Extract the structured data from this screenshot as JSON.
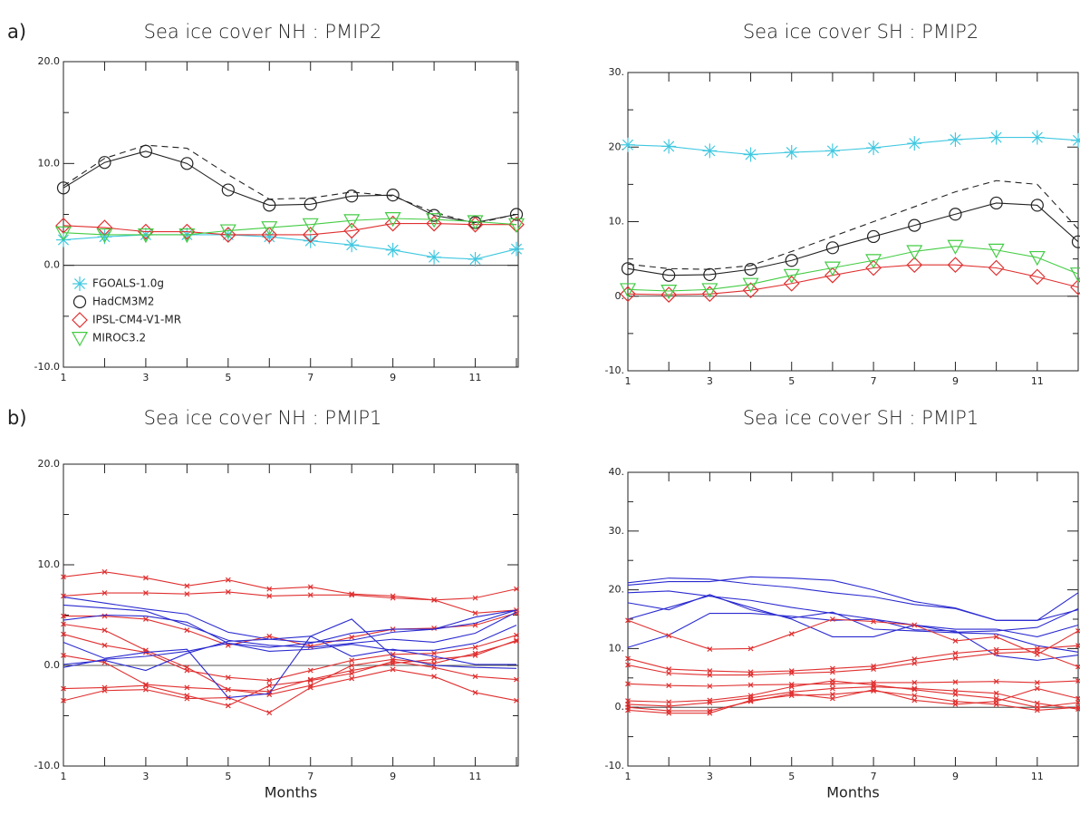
{
  "chart_data": [
    {
      "type": "line",
      "panel_label": "a)",
      "title": "Sea ice cover NH : PMIP2",
      "x": [
        1,
        2,
        3,
        4,
        5,
        6,
        7,
        8,
        9,
        10,
        11,
        12
      ],
      "xlim": [
        1,
        12
      ],
      "xticks": [
        1,
        3,
        5,
        7,
        9,
        11
      ],
      "xminorticks": [
        2,
        4,
        6,
        8,
        10,
        12
      ],
      "ylim": [
        -10,
        20
      ],
      "yticks": [
        {
          "value": -10,
          "label": "-10.0"
        },
        {
          "value": 0,
          "label": "0.0"
        },
        {
          "value": 10,
          "label": "10.0"
        },
        {
          "value": 20,
          "label": "20.0"
        }
      ],
      "yminorticks": [
        -5,
        5,
        15
      ],
      "legend": "lower left",
      "series": [
        {
          "style": "dashed",
          "color": "#222222",
          "values": [
            7.8,
            10.5,
            11.8,
            11.5,
            8.9,
            6.5,
            6.6,
            7.2,
            6.8,
            5.2,
            4.1,
            5.0
          ]
        },
        {
          "name": "FGOALS-1.0g",
          "marker": "asterisk",
          "color": "#40c8e0",
          "values": [
            2.5,
            2.8,
            3.0,
            3.0,
            3.0,
            2.8,
            2.4,
            2.0,
            1.5,
            0.8,
            0.6,
            1.6
          ]
        },
        {
          "name": "HadCM3M2",
          "marker": "circle",
          "color": "#222222",
          "values": [
            7.6,
            10.1,
            11.2,
            10.0,
            7.4,
            5.9,
            6.0,
            6.8,
            6.9,
            4.9,
            4.2,
            5.0
          ]
        },
        {
          "name": "IPSL-CM4-V1-MR",
          "marker": "diamond",
          "color": "#e03030",
          "values": [
            3.9,
            3.7,
            3.3,
            3.3,
            3.0,
            3.0,
            3.0,
            3.4,
            4.1,
            4.1,
            4.0,
            4.0
          ]
        },
        {
          "name": "MIROC3.2",
          "marker": "triangle",
          "color": "#44cc44",
          "values": [
            3.2,
            3.0,
            3.0,
            3.0,
            3.4,
            3.7,
            4.0,
            4.4,
            4.6,
            4.5,
            4.3,
            4.0
          ]
        }
      ]
    },
    {
      "type": "line",
      "title": "Sea ice cover SH : PMIP2",
      "x": [
        1,
        2,
        3,
        4,
        5,
        6,
        7,
        8,
        9,
        10,
        11,
        12
      ],
      "xlim": [
        1,
        12
      ],
      "xticks": [
        1,
        3,
        5,
        7,
        9,
        11
      ],
      "xminorticks": [
        2,
        4,
        6,
        8,
        10,
        12
      ],
      "ylim": [
        -10,
        30
      ],
      "yticks": [
        {
          "value": -10,
          "label": "-10."
        },
        {
          "value": 0,
          "label": "0."
        },
        {
          "value": 10,
          "label": "10."
        },
        {
          "value": 20,
          "label": "20."
        },
        {
          "value": 30,
          "label": "30."
        }
      ],
      "yminorticks": [
        -5,
        5,
        15,
        25
      ],
      "series": [
        {
          "style": "dashed",
          "color": "#222222",
          "values": [
            4.3,
            3.7,
            3.6,
            4.1,
            6.0,
            8.0,
            10.0,
            12.0,
            14.0,
            15.5,
            15.0,
            9.0
          ]
        },
        {
          "marker": "asterisk",
          "color": "#40c8e0",
          "values": [
            20.3,
            20.1,
            19.5,
            19.0,
            19.3,
            19.5,
            19.9,
            20.5,
            21.0,
            21.3,
            21.3,
            20.9
          ]
        },
        {
          "marker": "circle",
          "color": "#222222",
          "values": [
            3.7,
            2.8,
            2.9,
            3.6,
            4.8,
            6.5,
            8.0,
            9.5,
            11.0,
            12.5,
            12.2,
            7.3
          ]
        },
        {
          "marker": "diamond",
          "color": "#e03030",
          "values": [
            0.3,
            0.2,
            0.3,
            0.8,
            1.7,
            2.8,
            3.8,
            4.2,
            4.2,
            3.8,
            2.6,
            1.2
          ]
        },
        {
          "marker": "triangle",
          "color": "#44cc44",
          "values": [
            0.9,
            0.7,
            0.9,
            1.6,
            2.8,
            3.8,
            4.8,
            6.0,
            6.7,
            6.2,
            5.2,
            3.0
          ]
        }
      ]
    },
    {
      "type": "line",
      "panel_label": "b)",
      "title": "Sea ice cover NH : PMIP1",
      "xlabel": "Months",
      "x": [
        1,
        2,
        3,
        4,
        5,
        6,
        7,
        8,
        9,
        10,
        11,
        12
      ],
      "xlim": [
        1,
        12
      ],
      "xticks": [
        1,
        3,
        5,
        7,
        9,
        11
      ],
      "xminorticks": [
        2,
        4,
        6,
        8,
        10,
        12
      ],
      "ylim": [
        -10,
        20
      ],
      "yticks": [
        {
          "value": -10,
          "label": "-10.0"
        },
        {
          "value": 0,
          "label": "0.0"
        },
        {
          "value": 10,
          "label": "10.0"
        },
        {
          "value": 20,
          "label": "20.0"
        }
      ],
      "yminorticks": [
        -5,
        5,
        15
      ],
      "series": [
        {
          "marker": "x",
          "color": "#e03030",
          "values": [
            8.8,
            9.3,
            8.7,
            7.9,
            8.5,
            7.6,
            7.8,
            7.1,
            6.9,
            6.5,
            6.7,
            7.6
          ]
        },
        {
          "marker": "x",
          "color": "#e03030",
          "values": [
            6.9,
            7.2,
            7.2,
            7.1,
            7.3,
            6.9,
            7.0,
            7.0,
            6.7,
            6.5,
            5.2,
            5.5
          ]
        },
        {
          "marker": "x",
          "color": "#e03030",
          "values": [
            4.9,
            4.9,
            4.6,
            3.5,
            2.0,
            2.9,
            1.9,
            2.8,
            3.6,
            3.7,
            4.0,
            5.2
          ]
        },
        {
          "marker": "x",
          "color": "#e03030",
          "values": [
            3.1,
            2.0,
            1.3,
            -0.5,
            -1.2,
            -1.5,
            -0.5,
            0.5,
            1.1,
            1.2,
            1.8,
            3.0
          ]
        },
        {
          "marker": "x",
          "color": "#e03030",
          "values": [
            1.0,
            0.3,
            -1.9,
            -2.2,
            -2.4,
            -2.6,
            -1.4,
            -0.5,
            0.2,
            0.6,
            1.0,
            2.5
          ]
        },
        {
          "marker": "x",
          "color": "#e03030",
          "values": [
            -2.3,
            -2.2,
            -2.0,
            -3.0,
            -4.0,
            -2.0,
            -1.5,
            -0.8,
            0.4,
            -0.2,
            -1.1,
            -1.4
          ]
        },
        {
          "marker": "x",
          "color": "#e03030",
          "values": [
            -3.5,
            -2.5,
            -2.4,
            -3.3,
            -3.2,
            -4.7,
            -2.2,
            -1.3,
            -0.4,
            -1.1,
            -2.7,
            -3.5
          ]
        },
        {
          "marker": "x",
          "color": "#e03030",
          "values": [
            4.1,
            3.5,
            1.5,
            -0.2,
            -2.4,
            -2.9,
            -2.0,
            0.0,
            0.6,
            0.2,
            1.2,
            2.4
          ]
        },
        {
          "color": "#2a2ad0",
          "values": [
            6.8,
            6.2,
            5.6,
            5.1,
            3.3,
            2.6,
            2.3,
            2.5,
            3.3,
            3.6,
            4.8,
            5.5
          ]
        },
        {
          "color": "#2a2ad0",
          "values": [
            6.0,
            5.7,
            5.4,
            4.0,
            2.5,
            2.0,
            1.8,
            2.2,
            2.6,
            2.3,
            3.2,
            5.3
          ]
        },
        {
          "color": "#2a2ad0",
          "values": [
            4.5,
            5.0,
            4.9,
            4.3,
            2.2,
            1.4,
            1.6,
            2.1,
            1.5,
            1.5,
            2.2,
            4.0
          ]
        },
        {
          "color": "#2a2ad0",
          "values": [
            2.3,
            0.7,
            1.3,
            1.6,
            -3.2,
            -2.8,
            2.9,
            4.6,
            0.9,
            0.0,
            -0.2,
            -0.3
          ]
        },
        {
          "color": "#2a2ad0",
          "values": [
            0.1,
            0.5,
            -0.5,
            1.2,
            2.4,
            2.6,
            2.9,
            0.9,
            1.6,
            0.9,
            0.1,
            0.1
          ]
        },
        {
          "color": "#2a2ad0",
          "values": [
            -0.2,
            0.6,
            0.9,
            1.4,
            2.2,
            1.8,
            2.2,
            3.2,
            3.6,
            3.6,
            4.2,
            5.5
          ]
        }
      ]
    },
    {
      "type": "line",
      "title": "Sea ice cover SH : PMIP1",
      "xlabel": "Months",
      "x": [
        1,
        2,
        3,
        4,
        5,
        6,
        7,
        8,
        9,
        10,
        11,
        12
      ],
      "xlim": [
        1,
        12
      ],
      "xticks": [
        1,
        3,
        5,
        7,
        9,
        11
      ],
      "xminorticks": [
        2,
        4,
        6,
        8,
        10,
        12
      ],
      "ylim": [
        -10,
        40
      ],
      "yticks": [
        {
          "value": -10,
          "label": "-10."
        },
        {
          "value": 0,
          "label": "0."
        },
        {
          "value": 10,
          "label": "10."
        },
        {
          "value": 20,
          "label": "20."
        },
        {
          "value": 30,
          "label": "30."
        },
        {
          "value": 40,
          "label": "40."
        }
      ],
      "yminorticks": [
        -5,
        5,
        15,
        25,
        35
      ],
      "series": [
        {
          "color": "#2a2ad0",
          "values": [
            21.2,
            22.0,
            21.8,
            21.0,
            20.4,
            19.5,
            18.8,
            17.5,
            16.8,
            14.8,
            14.8,
            19.5
          ]
        },
        {
          "color": "#2a2ad0",
          "values": [
            20.8,
            21.4,
            21.4,
            22.2,
            22.0,
            21.6,
            20.0,
            18.0,
            16.9,
            14.8,
            14.8,
            16.6
          ]
        },
        {
          "color": "#2a2ad0",
          "values": [
            19.5,
            19.8,
            18.9,
            18.2,
            17.0,
            16.0,
            15.0,
            14.0,
            13.3,
            13.3,
            12.0,
            14.0
          ]
        },
        {
          "color": "#2a2ad0",
          "values": [
            17.8,
            16.6,
            19.2,
            16.6,
            15.2,
            16.2,
            13.3,
            13.0,
            12.7,
            12.5,
            10.5,
            9.4
          ]
        },
        {
          "color": "#2a2ad0",
          "values": [
            15.0,
            17.0,
            19.0,
            17.0,
            15.0,
            12.0,
            12.0,
            14.0,
            12.8,
            13.0,
            13.6,
            16.8
          ]
        },
        {
          "color": "#2a2ad0",
          "values": [
            10.2,
            12.3,
            16.0,
            16.0,
            15.5,
            14.8,
            15.0,
            13.2,
            13.0,
            8.8,
            8.0,
            8.9
          ]
        },
        {
          "marker": "x",
          "color": "#e03030",
          "values": [
            14.8,
            12.2,
            9.9,
            10.0,
            12.5,
            15.0,
            14.6,
            14.0,
            11.3,
            12.0,
            9.0,
            13.0
          ]
        },
        {
          "marker": "x",
          "color": "#e03030",
          "values": [
            8.3,
            6.5,
            6.2,
            6.0,
            6.2,
            6.6,
            7.0,
            8.2,
            9.2,
            9.8,
            10.0,
            10.5
          ]
        },
        {
          "marker": "x",
          "color": "#e03030",
          "values": [
            7.2,
            5.8,
            5.5,
            5.5,
            5.8,
            6.0,
            6.5,
            7.5,
            8.4,
            9.2,
            9.5,
            6.9
          ]
        },
        {
          "marker": "x",
          "color": "#e03030",
          "values": [
            4.0,
            3.7,
            3.6,
            3.8,
            3.9,
            4.0,
            4.2,
            4.2,
            4.3,
            4.4,
            4.2,
            4.5
          ]
        },
        {
          "marker": "x",
          "color": "#e03030",
          "values": [
            1.1,
            0.9,
            1.2,
            2.0,
            3.5,
            4.5,
            3.8,
            3.0,
            2.2,
            1.5,
            0.0,
            0.8
          ]
        },
        {
          "marker": "x",
          "color": "#e03030",
          "values": [
            0.5,
            0.2,
            0.8,
            1.6,
            2.6,
            3.2,
            3.5,
            3.2,
            2.8,
            2.4,
            0.7,
            -0.3
          ]
        },
        {
          "marker": "x",
          "color": "#e03030",
          "values": [
            0.0,
            -0.6,
            -0.6,
            1.0,
            2.3,
            1.5,
            3.0,
            1.2,
            0.5,
            1.0,
            3.2,
            1.5
          ]
        },
        {
          "marker": "x",
          "color": "#e03030",
          "values": [
            -0.5,
            -1.0,
            -1.0,
            1.2,
            2.0,
            2.2,
            2.8,
            2.0,
            1.0,
            0.5,
            -0.5,
            0.0
          ]
        }
      ]
    }
  ]
}
